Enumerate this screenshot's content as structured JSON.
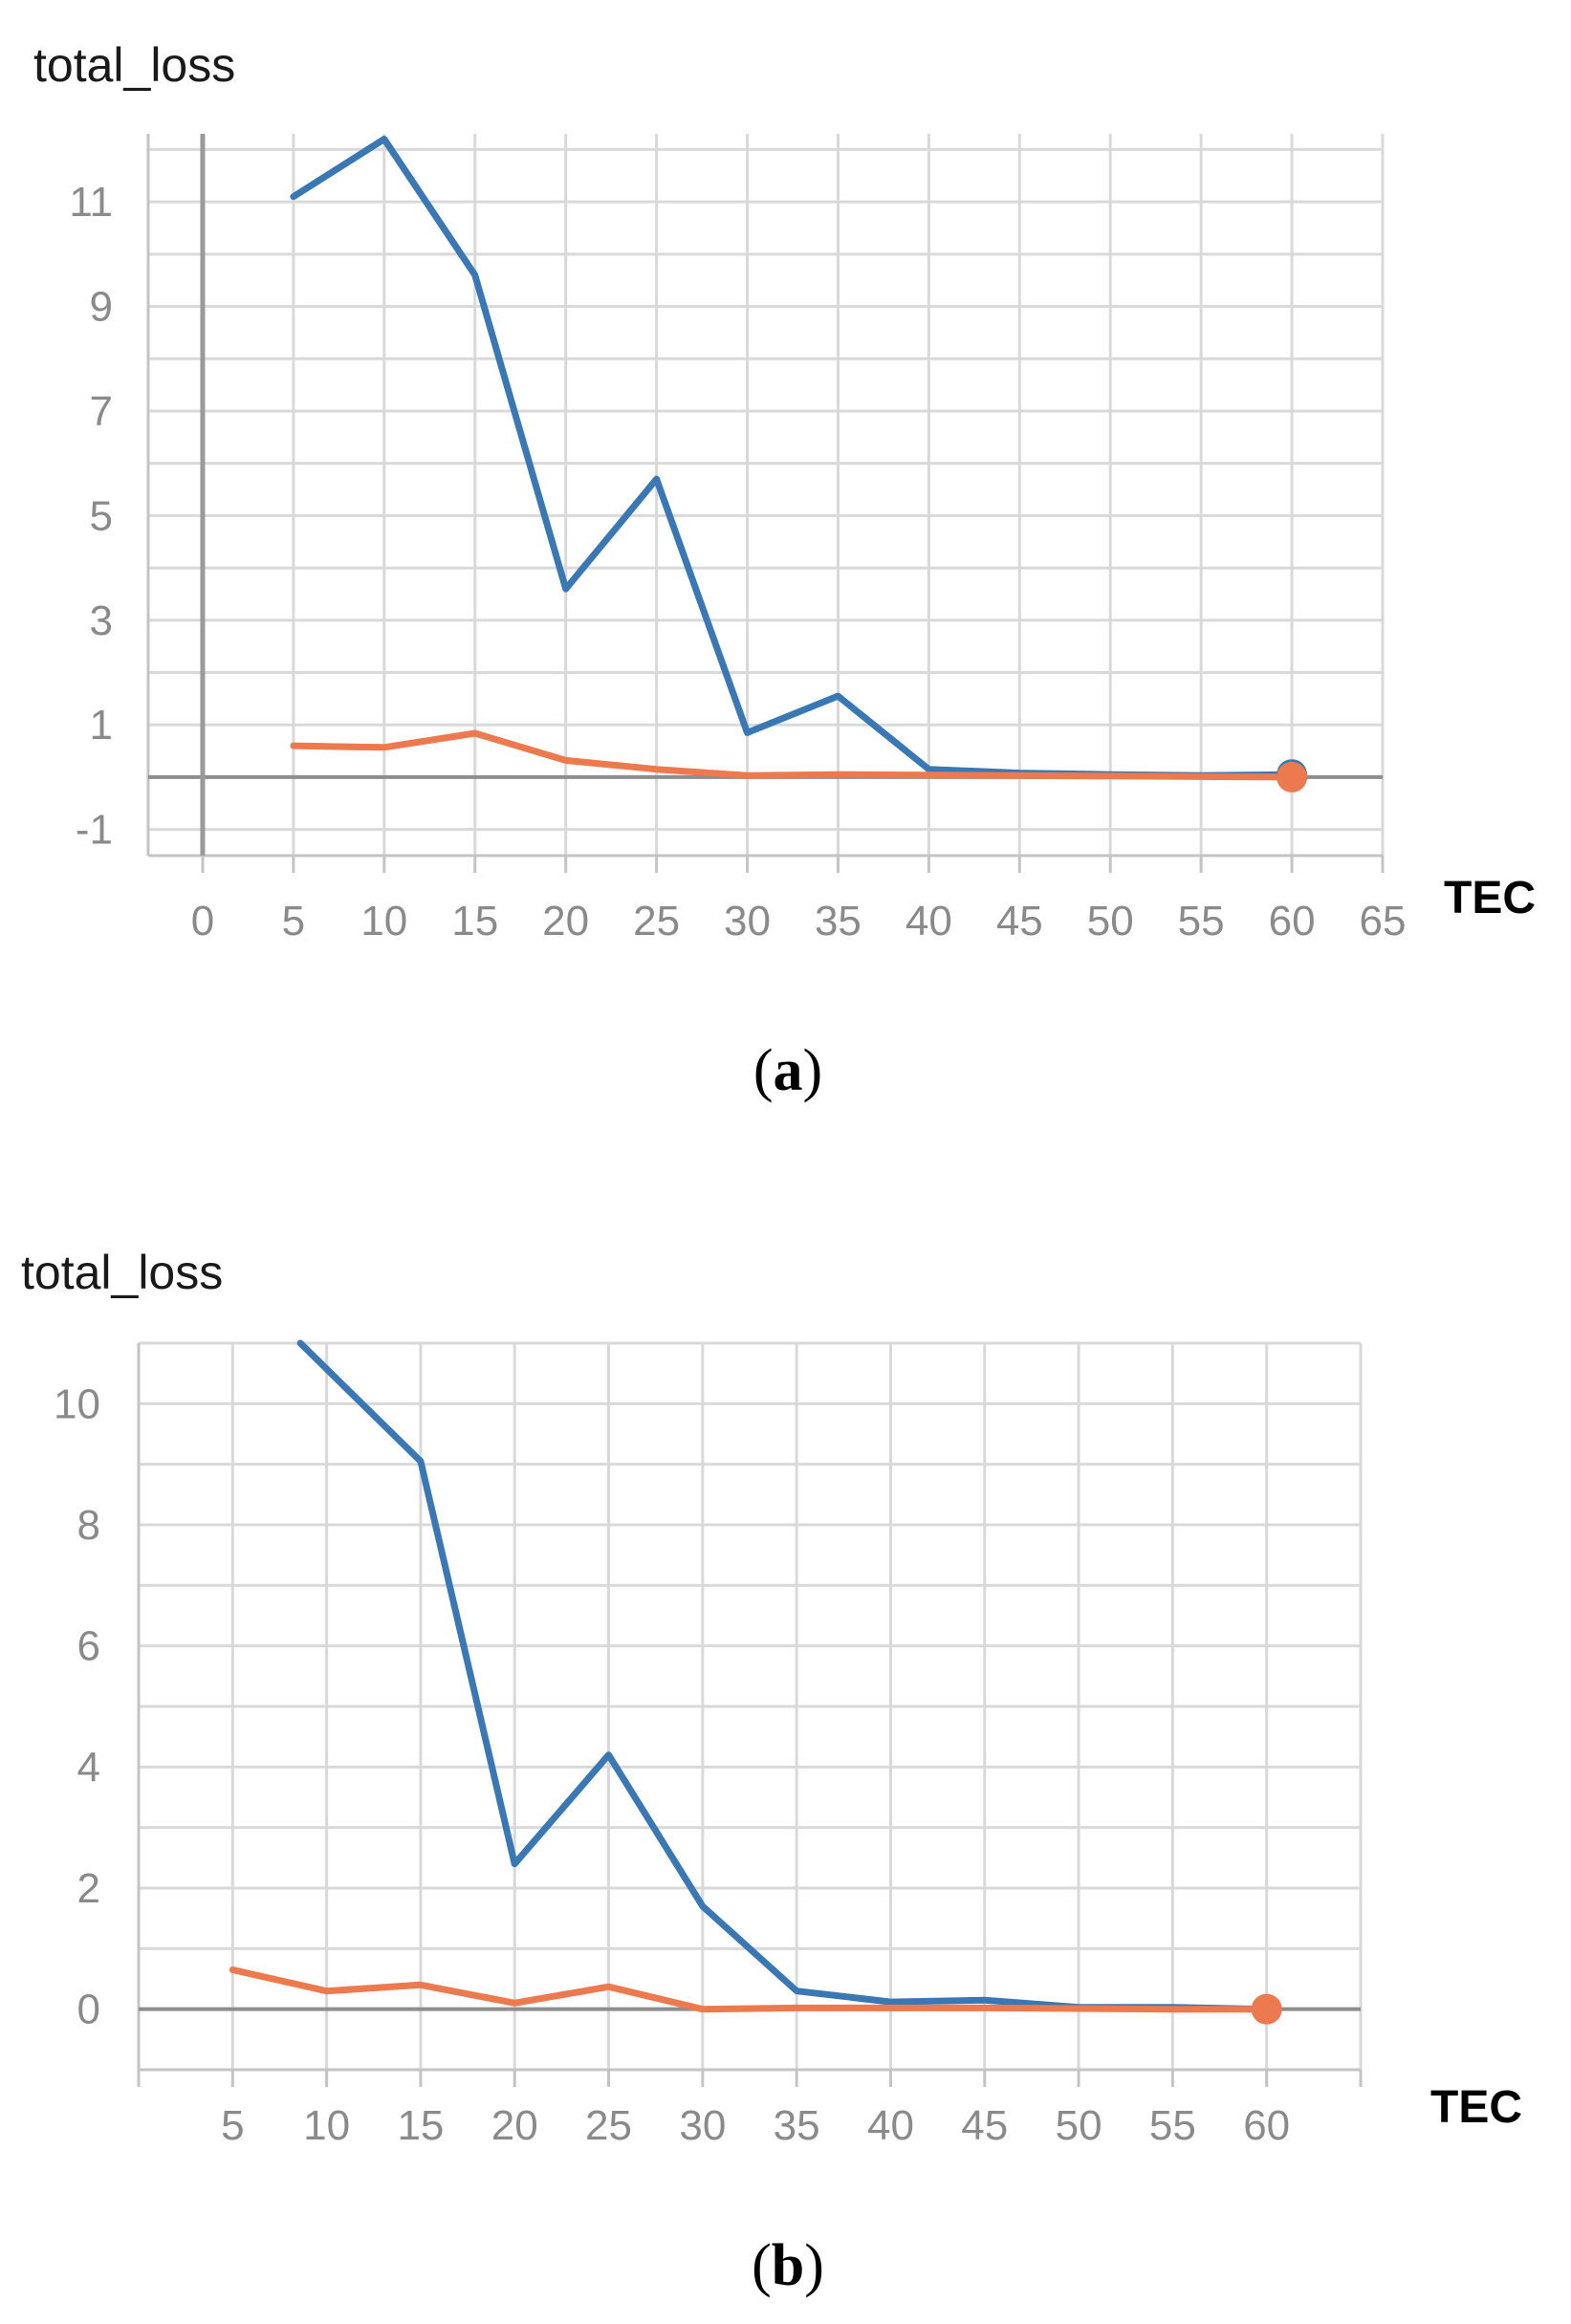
{
  "chart_data": [
    {
      "type": "line",
      "title": "total_loss",
      "xlabel": "TEC",
      "ylabel": "",
      "caption_label": "a",
      "xlim": [
        -3,
        65
      ],
      "ylim": [
        -1.5,
        12.3
      ],
      "xticks": [
        0,
        5,
        10,
        15,
        20,
        25,
        30,
        35,
        40,
        45,
        50,
        55,
        60,
        65
      ],
      "yticks": [
        -1,
        1,
        3,
        5,
        7,
        9,
        11
      ],
      "grid": true,
      "legend": "none",
      "series": [
        {
          "color": "#3a78b5",
          "end_marker": true,
          "x": [
            5,
            10,
            15,
            20,
            25,
            30,
            35,
            40,
            45,
            50,
            55,
            60
          ],
          "y": [
            11.1,
            12.2,
            9.6,
            3.6,
            5.7,
            0.85,
            1.55,
            0.15,
            0.08,
            0.05,
            0.03,
            0.05
          ]
        },
        {
          "color": "#ec7a4e",
          "end_marker": true,
          "x": [
            5,
            10,
            15,
            20,
            25,
            30,
            35,
            40,
            45,
            50,
            55,
            60
          ],
          "y": [
            0.6,
            0.57,
            0.84,
            0.32,
            0.15,
            0.03,
            0.05,
            0.04,
            0.03,
            0.02,
            0.01,
            0.0
          ]
        }
      ]
    },
    {
      "type": "line",
      "title": "total_loss",
      "xlabel": "TEC",
      "ylabel": "",
      "caption_label": "b",
      "xlim": [
        0,
        65
      ],
      "ylim": [
        -1,
        11
      ],
      "xticks": [
        5,
        10,
        15,
        20,
        25,
        30,
        35,
        40,
        45,
        50,
        55,
        60
      ],
      "yticks": [
        0,
        2,
        4,
        6,
        8,
        10
      ],
      "grid": true,
      "legend": "none",
      "series": [
        {
          "color": "#3a78b5",
          "end_marker": false,
          "x": [
            8.6,
            15,
            20,
            25,
            30,
            35,
            40,
            45,
            50,
            55,
            60
          ],
          "y": [
            11.0,
            9.05,
            2.4,
            4.2,
            1.7,
            0.3,
            0.12,
            0.15,
            0.03,
            0.03,
            0.0
          ]
        },
        {
          "color": "#ec7a4e",
          "end_marker": true,
          "x": [
            5,
            10,
            15,
            20,
            25,
            30,
            35,
            40,
            45,
            50,
            55,
            60
          ],
          "y": [
            0.65,
            0.3,
            0.4,
            0.1,
            0.37,
            0.0,
            0.02,
            0.02,
            0.02,
            0.01,
            0.0,
            0.0
          ]
        }
      ]
    }
  ]
}
